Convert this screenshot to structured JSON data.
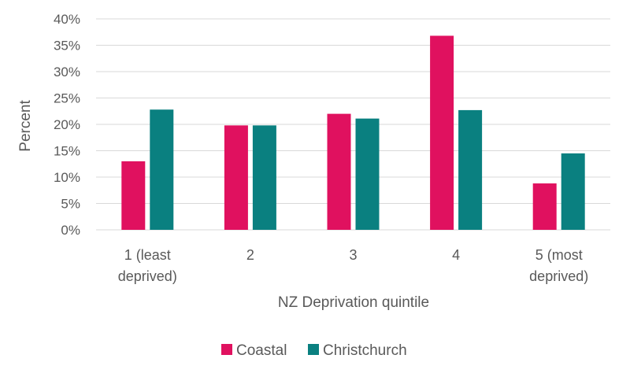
{
  "chart_data": {
    "type": "bar",
    "categories": [
      [
        "1 (least",
        "deprived)"
      ],
      [
        "2"
      ],
      [
        "3"
      ],
      [
        "4"
      ],
      [
        "5 (most",
        "deprived)"
      ]
    ],
    "series": [
      {
        "name": "Coastal",
        "color": "#E0115F",
        "values": [
          13.0,
          19.8,
          22.0,
          36.8,
          8.8
        ]
      },
      {
        "name": "Christchurch",
        "color": "#0A8080",
        "values": [
          22.8,
          19.8,
          21.1,
          22.7,
          14.5
        ]
      }
    ],
    "xlabel": "NZ Deprivation quintile",
    "ylabel": "Percent",
    "ylim": [
      0,
      40
    ],
    "yticks": [
      0,
      5,
      10,
      15,
      20,
      25,
      30,
      35,
      40
    ],
    "ytick_suffix": "%",
    "grid": true,
    "gridline_color": "#D9D9D9",
    "legend_position": "bottom"
  }
}
